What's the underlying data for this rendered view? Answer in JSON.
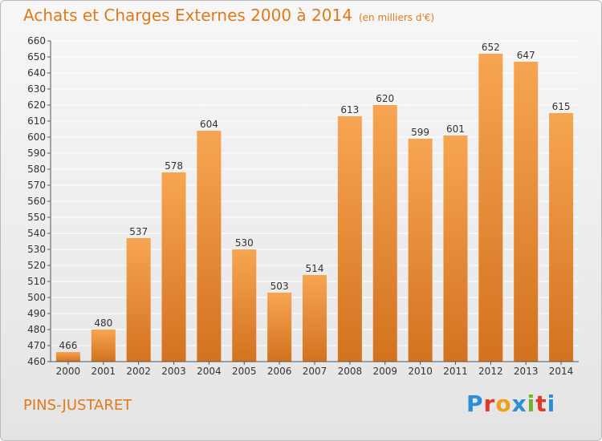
{
  "title": "Achats et Charges Externes 2000 à 2014",
  "unit": "(en milliers d'€)",
  "commune": "PINS-JUSTARET",
  "logo": {
    "letters": [
      "P",
      "r",
      "o",
      "x",
      "i",
      "t",
      "i"
    ],
    "colors": [
      "#2a8fd8",
      "#e2382a",
      "#f0a11a",
      "#2a8fd8",
      "#6cb52d",
      "#e2382a",
      "#2a8fd8"
    ]
  },
  "colors": {
    "bar_top": "#f7a552",
    "bar_bottom": "#d3721f",
    "grid": "#ffffff",
    "text": "#333333",
    "accent": "#e0791a"
  },
  "chart_data": {
    "type": "bar",
    "categories": [
      "2000",
      "2001",
      "2002",
      "2003",
      "2004",
      "2005",
      "2006",
      "2007",
      "2008",
      "2009",
      "2010",
      "2011",
      "2012",
      "2013",
      "2014"
    ],
    "values": [
      466,
      480,
      537,
      578,
      604,
      530,
      503,
      514,
      613,
      620,
      599,
      601,
      652,
      647,
      615
    ],
    "ylim": [
      460,
      660
    ],
    "yticks": [
      460,
      470,
      480,
      490,
      500,
      510,
      520,
      530,
      540,
      550,
      560,
      570,
      580,
      590,
      600,
      610,
      620,
      630,
      640,
      650,
      660
    ],
    "grid": true
  }
}
